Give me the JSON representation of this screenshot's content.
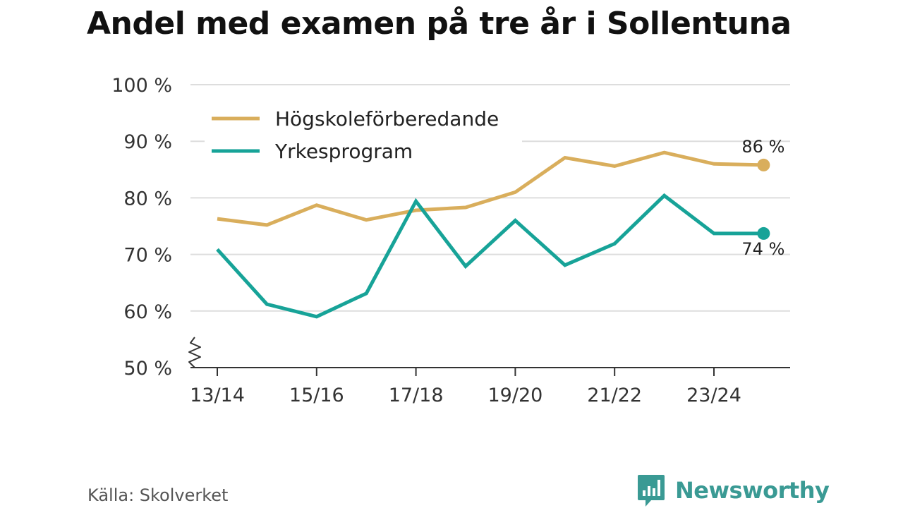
{
  "title": "Andel med examen på tre år i Sollentuna",
  "source": "Källa: Skolverket",
  "brand": "Newsworthy",
  "colors": {
    "series1": "#d9ae5c",
    "series2": "#17a398",
    "grid": "#dddddd",
    "axis": "#333333",
    "brand": "#3a9a94"
  },
  "chart_data": {
    "type": "line",
    "x": [
      "13/14",
      "14/15",
      "15/16",
      "16/17",
      "17/18",
      "18/19",
      "19/20",
      "20/21",
      "21/22",
      "22/23",
      "23/24",
      "24/25"
    ],
    "x_tick_labels": [
      "13/14",
      "15/16",
      "17/18",
      "19/20",
      "21/22",
      "23/24"
    ],
    "ylim": [
      50,
      100
    ],
    "y_ticks": [
      50,
      60,
      70,
      80,
      90,
      100
    ],
    "y_tick_labels": [
      "50 %",
      "60 %",
      "70 %",
      "80 %",
      "90 %",
      "100 %"
    ],
    "y_axis_break": true,
    "grid": true,
    "legend_position": "top-left",
    "series": [
      {
        "name": "Högskoleförberedande",
        "color": "#d9ae5c",
        "values": [
          76.3,
          75.2,
          78.7,
          76.1,
          77.8,
          78.3,
          81.0,
          87.1,
          85.6,
          88.0,
          86.0,
          85.8
        ],
        "end_label": "86 %",
        "end_label_position": "above"
      },
      {
        "name": "Yrkesprogram",
        "color": "#17a398",
        "values": [
          70.9,
          61.2,
          59.0,
          63.1,
          79.4,
          67.9,
          76.0,
          68.1,
          71.9,
          80.4,
          73.7,
          73.7
        ],
        "end_label": "74 %",
        "end_label_position": "below"
      }
    ]
  }
}
